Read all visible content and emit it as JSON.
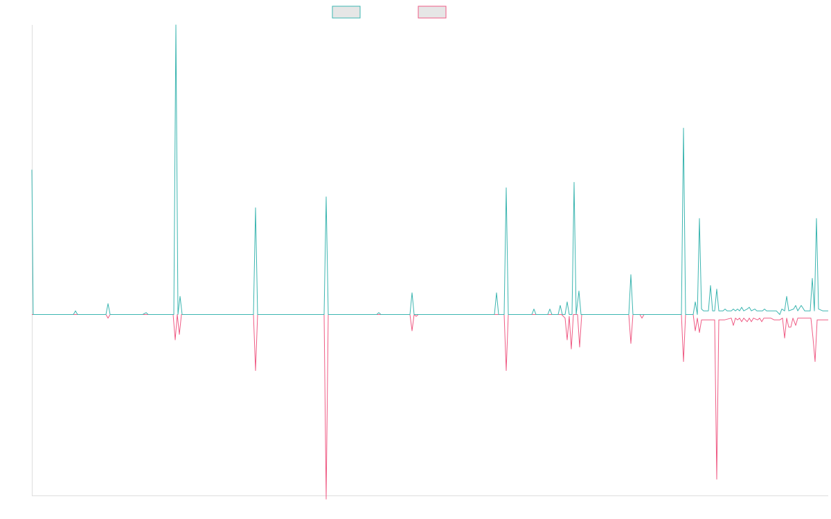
{
  "colors": {
    "series_a": "#3bb5b0",
    "series_b": "#ef5b84",
    "legend_fill": "#e6e6e6",
    "axis": "#dddddd"
  },
  "chart_data": {
    "type": "line",
    "grid": false,
    "legend": {
      "position": "top-center",
      "entries": [
        "",
        ""
      ]
    },
    "ylim": [
      -100,
      160
    ],
    "xlim": [
      0,
      1150
    ],
    "series": [
      {
        "color_key": "series_a",
        "points": [
          [
            0,
            80
          ],
          [
            2,
            0
          ],
          [
            60,
            0
          ],
          [
            63,
            2
          ],
          [
            66,
            0
          ],
          [
            107,
            0
          ],
          [
            110,
            6
          ],
          [
            113,
            0
          ],
          [
            160,
            0
          ],
          [
            165,
            1
          ],
          [
            168,
            0
          ],
          [
            205,
            0
          ],
          [
            208,
            160
          ],
          [
            211,
            0
          ],
          [
            214,
            10
          ],
          [
            217,
            0
          ],
          [
            320,
            0
          ],
          [
            323,
            59
          ],
          [
            326,
            0
          ],
          [
            422,
            0
          ],
          [
            425,
            65
          ],
          [
            428,
            0
          ],
          [
            498,
            0
          ],
          [
            501,
            1
          ],
          [
            504,
            0
          ],
          [
            546,
            0
          ],
          [
            549,
            12
          ],
          [
            552,
            0
          ],
          [
            668,
            0
          ],
          [
            671,
            12
          ],
          [
            674,
            0
          ],
          [
            682,
            0
          ],
          [
            685,
            70
          ],
          [
            688,
            0
          ],
          [
            690,
            0
          ],
          [
            722,
            0
          ],
          [
            725,
            3
          ],
          [
            728,
            0
          ],
          [
            745,
            0
          ],
          [
            748,
            3
          ],
          [
            751,
            0
          ],
          [
            760,
            0
          ],
          [
            763,
            5
          ],
          [
            766,
            0
          ],
          [
            770,
            0
          ],
          [
            773,
            7
          ],
          [
            776,
            0
          ],
          [
            780,
            0
          ],
          [
            783,
            73
          ],
          [
            786,
            0
          ],
          [
            790,
            13
          ],
          [
            793,
            0
          ],
          [
            862,
            0
          ],
          [
            865,
            22
          ],
          [
            868,
            0
          ],
          [
            938,
            0
          ],
          [
            941,
            103
          ],
          [
            944,
            0
          ],
          [
            955,
            0
          ],
          [
            958,
            7
          ],
          [
            961,
            0
          ],
          [
            964,
            53
          ],
          [
            967,
            3
          ],
          [
            970,
            2
          ],
          [
            977,
            2
          ],
          [
            980,
            16
          ],
          [
            983,
            2
          ],
          [
            986,
            2
          ],
          [
            989,
            14
          ],
          [
            992,
            2
          ],
          [
            998,
            2
          ],
          [
            1001,
            3
          ],
          [
            1004,
            2
          ],
          [
            1010,
            2
          ],
          [
            1013,
            3
          ],
          [
            1016,
            2
          ],
          [
            1019,
            3
          ],
          [
            1022,
            2
          ],
          [
            1025,
            4
          ],
          [
            1028,
            2
          ],
          [
            1033,
            3
          ],
          [
            1036,
            4
          ],
          [
            1039,
            2
          ],
          [
            1044,
            3
          ],
          [
            1047,
            2
          ],
          [
            1052,
            2
          ],
          [
            1055,
            2
          ],
          [
            1058,
            3
          ],
          [
            1061,
            2
          ],
          [
            1064,
            2
          ],
          [
            1075,
            2
          ],
          [
            1080,
            0
          ],
          [
            1083,
            3
          ],
          [
            1087,
            2
          ],
          [
            1090,
            10
          ],
          [
            1093,
            2
          ],
          [
            1100,
            3
          ],
          [
            1103,
            5
          ],
          [
            1106,
            2
          ],
          [
            1111,
            5
          ],
          [
            1116,
            2
          ],
          [
            1120,
            2
          ],
          [
            1124,
            2
          ],
          [
            1127,
            20
          ],
          [
            1130,
            2
          ],
          [
            1133,
            53
          ],
          [
            1136,
            3
          ],
          [
            1142,
            2
          ],
          [
            1150,
            2
          ]
        ]
      },
      {
        "color_key": "series_b",
        "points": [
          [
            0,
            0
          ],
          [
            107,
            0
          ],
          [
            110,
            -2
          ],
          [
            113,
            0
          ],
          [
            204,
            0
          ],
          [
            207,
            -14
          ],
          [
            210,
            0
          ],
          [
            213,
            -11
          ],
          [
            216,
            0
          ],
          [
            320,
            0
          ],
          [
            323,
            -31
          ],
          [
            326,
            0
          ],
          [
            422,
            0
          ],
          [
            425,
            -102
          ],
          [
            428,
            0
          ],
          [
            546,
            0
          ],
          [
            549,
            -9
          ],
          [
            552,
            0
          ],
          [
            555,
            -1
          ],
          [
            558,
            0
          ],
          [
            682,
            0
          ],
          [
            685,
            -31
          ],
          [
            688,
            0
          ],
          [
            765,
            0
          ],
          [
            770,
            -2
          ],
          [
            773,
            -14
          ],
          [
            776,
            -1
          ],
          [
            779,
            -19
          ],
          [
            782,
            0
          ],
          [
            788,
            0
          ],
          [
            791,
            -18
          ],
          [
            794,
            0
          ],
          [
            800,
            0
          ],
          [
            862,
            0
          ],
          [
            865,
            -16
          ],
          [
            868,
            0
          ],
          [
            878,
            0
          ],
          [
            881,
            -2
          ],
          [
            884,
            0
          ],
          [
            938,
            0
          ],
          [
            941,
            -26
          ],
          [
            944,
            0
          ],
          [
            955,
            0
          ],
          [
            958,
            -9
          ],
          [
            961,
            -2
          ],
          [
            964,
            -10
          ],
          [
            967,
            -3
          ],
          [
            970,
            -3
          ],
          [
            974,
            -3
          ],
          [
            978,
            -3
          ],
          [
            986,
            -3
          ],
          [
            989,
            -91
          ],
          [
            992,
            -3
          ],
          [
            1000,
            -3
          ],
          [
            1010,
            -2
          ],
          [
            1013,
            -6
          ],
          [
            1016,
            -2
          ],
          [
            1019,
            -3
          ],
          [
            1022,
            -2
          ],
          [
            1025,
            -4
          ],
          [
            1028,
            -2
          ],
          [
            1033,
            -4
          ],
          [
            1036,
            -2
          ],
          [
            1039,
            -4
          ],
          [
            1042,
            -2
          ],
          [
            1048,
            -3
          ],
          [
            1051,
            -2
          ],
          [
            1054,
            -4
          ],
          [
            1057,
            -2
          ],
          [
            1062,
            -2
          ],
          [
            1067,
            -2
          ],
          [
            1072,
            -3
          ],
          [
            1080,
            -3
          ],
          [
            1084,
            -2
          ],
          [
            1087,
            -13
          ],
          [
            1090,
            -2
          ],
          [
            1093,
            -7
          ],
          [
            1096,
            -7
          ],
          [
            1099,
            -2
          ],
          [
            1103,
            -6
          ],
          [
            1106,
            -2
          ],
          [
            1110,
            -2
          ],
          [
            1114,
            -2
          ],
          [
            1125,
            -2
          ],
          [
            1128,
            -13
          ],
          [
            1131,
            -26
          ],
          [
            1134,
            -3
          ],
          [
            1142,
            -3
          ],
          [
            1150,
            -3
          ]
        ]
      }
    ]
  }
}
